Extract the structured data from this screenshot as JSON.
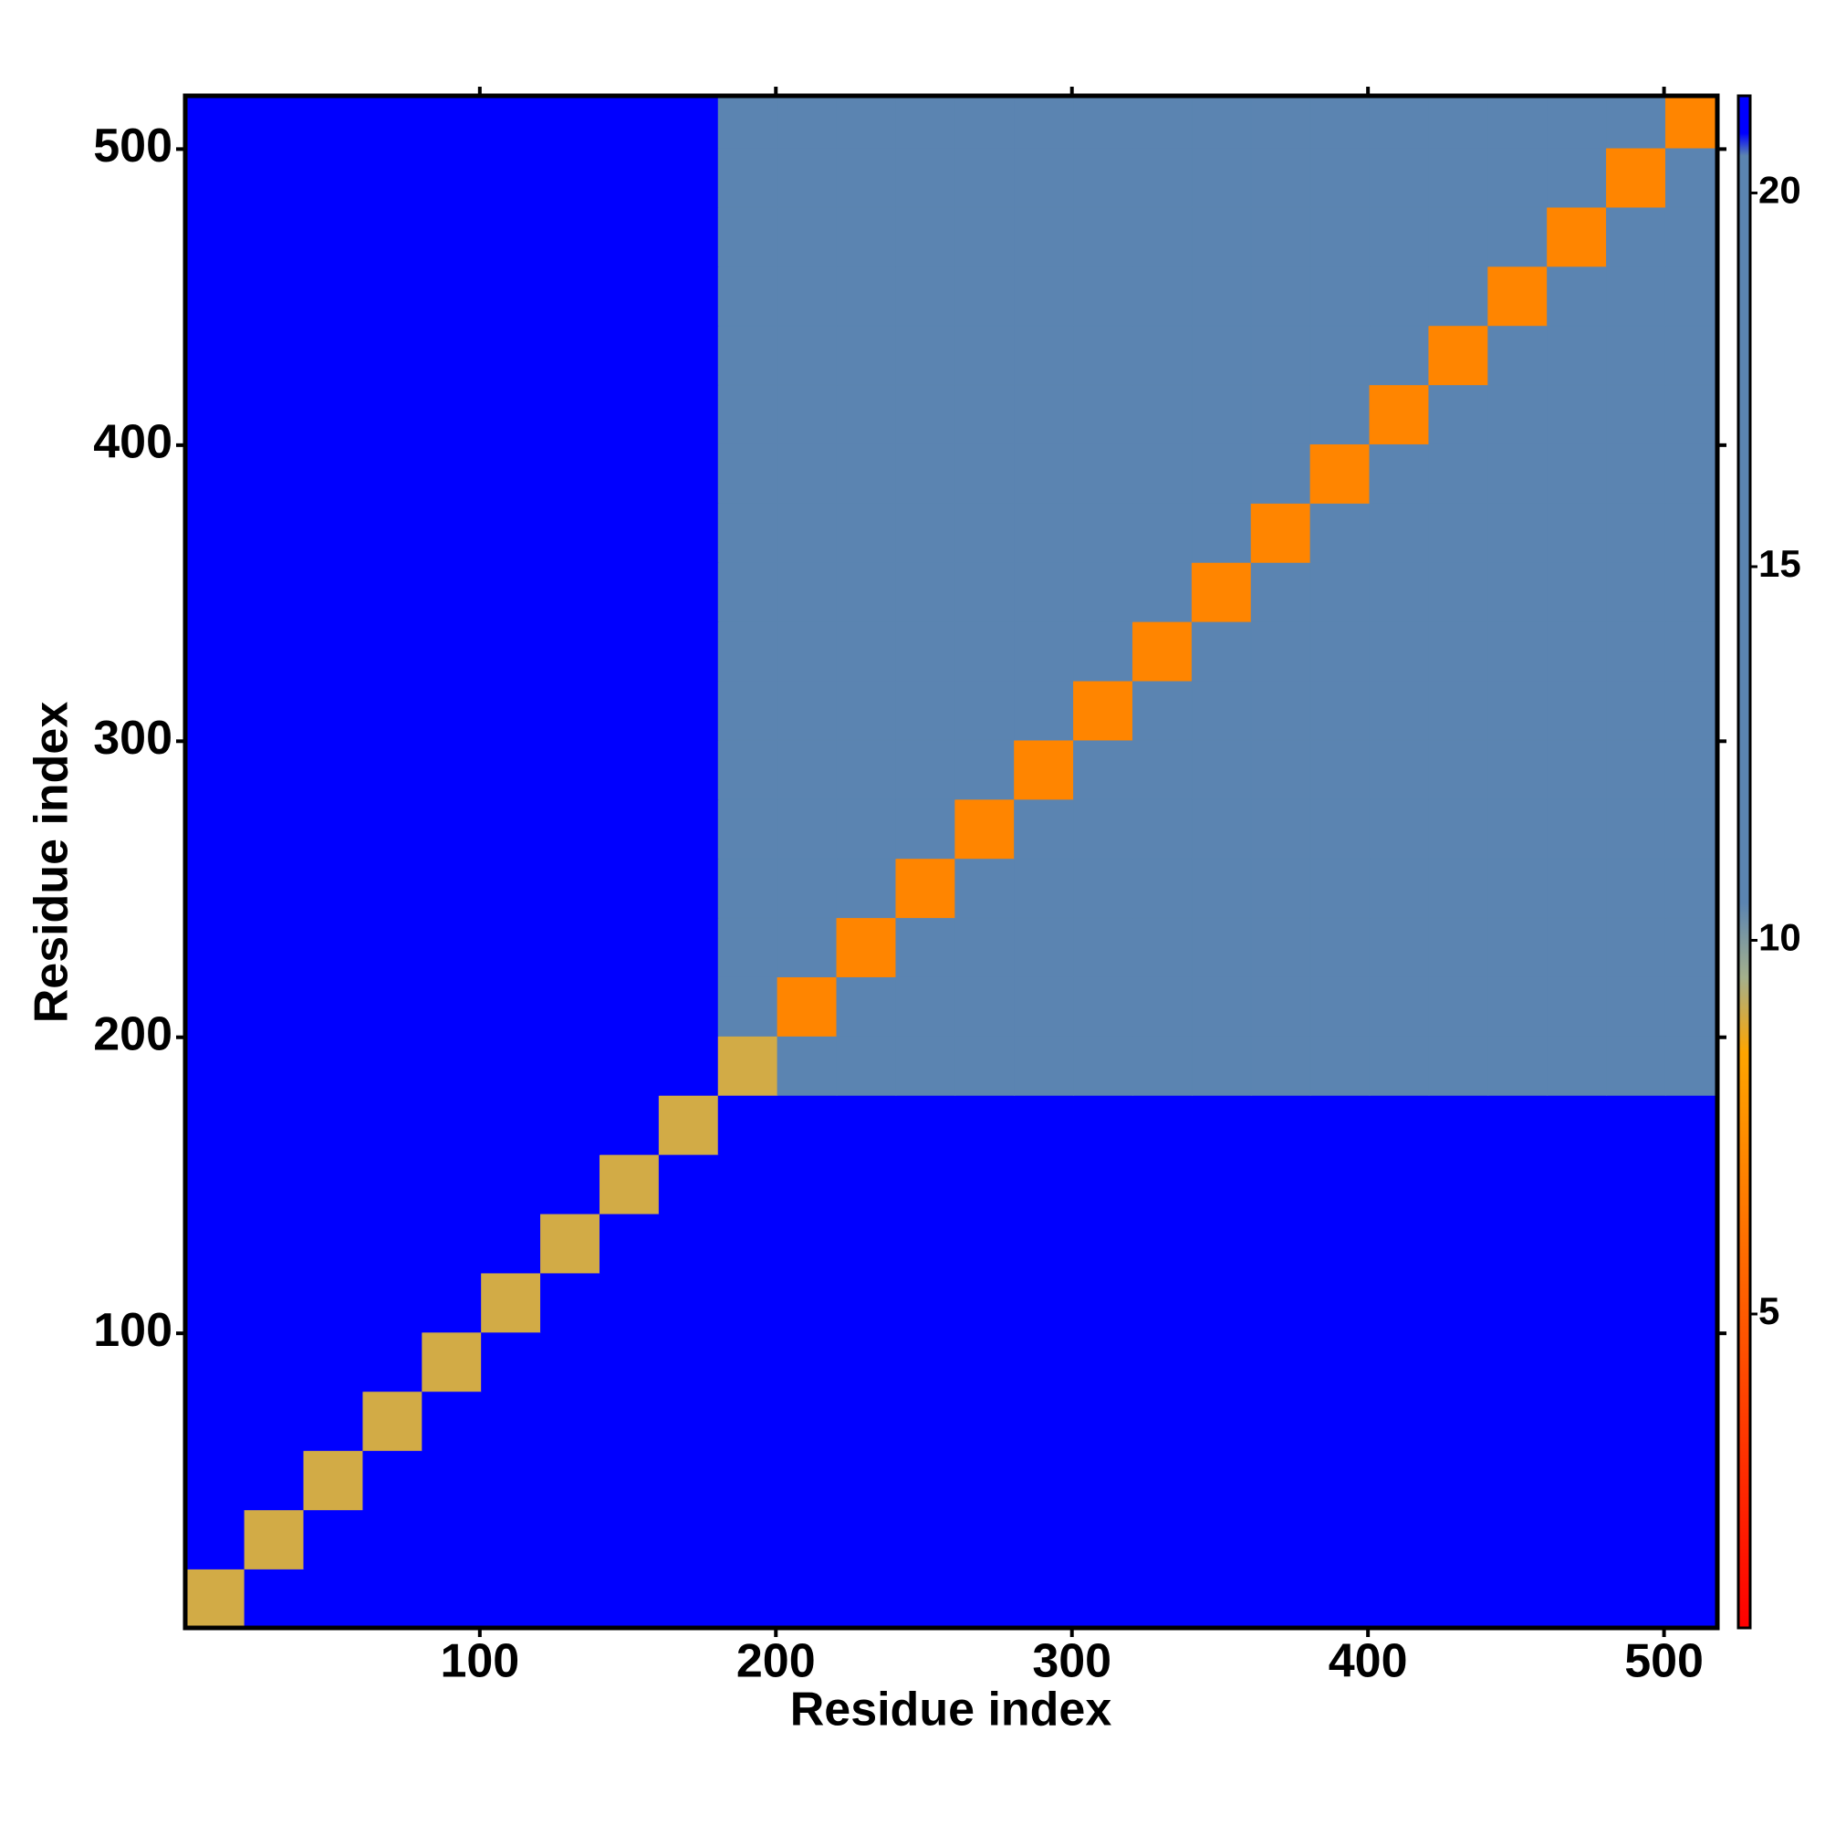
{
  "chart_data": {
    "type": "heatmap",
    "x_label": "Residue index",
    "y_label": "Residue index",
    "xlim": [
      0.5,
      518
    ],
    "ylim": [
      0.5,
      518
    ],
    "xticks": [
      100,
      200,
      300,
      400,
      500
    ],
    "yticks": [
      100,
      200,
      300,
      400,
      500
    ],
    "bins": [
      0.5,
      20.5,
      40.5,
      60.5,
      80.5,
      100.5,
      120.5,
      140.5,
      160.5,
      180.5,
      200.5,
      220.5,
      240.5,
      260.5,
      280.5,
      300.5,
      320.5,
      340.5,
      360.5,
      380.5,
      400.5,
      420.5,
      440.5,
      460.5,
      480.5,
      500.5,
      518
    ],
    "values": [
      [
        9,
        21,
        21,
        21,
        21,
        21,
        21,
        21,
        21,
        21,
        21,
        21,
        21,
        21,
        21,
        21,
        21,
        21,
        21,
        21,
        21,
        21,
        21,
        21,
        21,
        21
      ],
      [
        21,
        9,
        21,
        21,
        21,
        21,
        21,
        21,
        21,
        21,
        21,
        21,
        21,
        21,
        21,
        21,
        21,
        21,
        21,
        21,
        21,
        21,
        21,
        21,
        21,
        21
      ],
      [
        21,
        21,
        9,
        21,
        21,
        21,
        21,
        21,
        21,
        21,
        21,
        21,
        21,
        21,
        21,
        21,
        21,
        21,
        21,
        21,
        21,
        21,
        21,
        21,
        21,
        21
      ],
      [
        21,
        21,
        21,
        9,
        21,
        21,
        21,
        21,
        21,
        21,
        21,
        21,
        21,
        21,
        21,
        21,
        21,
        21,
        21,
        21,
        21,
        21,
        21,
        21,
        21,
        21
      ],
      [
        21,
        21,
        21,
        21,
        9,
        21,
        21,
        21,
        21,
        21,
        21,
        21,
        21,
        21,
        21,
        21,
        21,
        21,
        21,
        21,
        21,
        21,
        21,
        21,
        21,
        21
      ],
      [
        21,
        21,
        21,
        21,
        21,
        9,
        21,
        21,
        21,
        21,
        21,
        21,
        21,
        21,
        21,
        21,
        21,
        21,
        21,
        21,
        21,
        21,
        21,
        21,
        21,
        21
      ],
      [
        21,
        21,
        21,
        21,
        21,
        21,
        9,
        21,
        21,
        21,
        21,
        21,
        21,
        21,
        21,
        21,
        21,
        21,
        21,
        21,
        21,
        21,
        21,
        21,
        21,
        21
      ],
      [
        21,
        21,
        21,
        21,
        21,
        21,
        21,
        9,
        21,
        21,
        21,
        21,
        21,
        21,
        21,
        21,
        21,
        21,
        21,
        21,
        21,
        21,
        21,
        21,
        21,
        21
      ],
      [
        21,
        21,
        21,
        21,
        21,
        21,
        21,
        21,
        9,
        21,
        21,
        21,
        21,
        21,
        21,
        21,
        21,
        21,
        21,
        21,
        21,
        21,
        21,
        21,
        21,
        21
      ],
      [
        21,
        21,
        21,
        21,
        21,
        21,
        21,
        21,
        21,
        9,
        19,
        19,
        19,
        19,
        19,
        19,
        19,
        19,
        19,
        19,
        19,
        19,
        19,
        19,
        19,
        19
      ],
      [
        21,
        21,
        21,
        21,
        21,
        21,
        21,
        21,
        21,
        19,
        7,
        14,
        16,
        17,
        17,
        17,
        17,
        18,
        17,
        18,
        17,
        17,
        18,
        17,
        17,
        18
      ],
      [
        21,
        21,
        21,
        21,
        21,
        21,
        21,
        21,
        21,
        19,
        14,
        7,
        15,
        17,
        16,
        17,
        18,
        17,
        17,
        17,
        18,
        17,
        16,
        17,
        18,
        18
      ],
      [
        21,
        21,
        21,
        21,
        21,
        21,
        21,
        21,
        21,
        19,
        16,
        15,
        7,
        15,
        17,
        16,
        17,
        17,
        17,
        18,
        17,
        17,
        17,
        18,
        17,
        18
      ],
      [
        21,
        21,
        21,
        21,
        21,
        21,
        21,
        21,
        21,
        19,
        17,
        17,
        15,
        7,
        14,
        16,
        15,
        17,
        18,
        17,
        17,
        18,
        17,
        17,
        18,
        17
      ],
      [
        21,
        21,
        21,
        21,
        21,
        21,
        21,
        21,
        21,
        19,
        17,
        16,
        17,
        14,
        7,
        14,
        16,
        15,
        17,
        17,
        18,
        17,
        17,
        17,
        17,
        18
      ],
      [
        21,
        21,
        21,
        21,
        21,
        21,
        21,
        21,
        21,
        19,
        17,
        17,
        16,
        16,
        14,
        7,
        14,
        16,
        17,
        18,
        17,
        17,
        17,
        16,
        17,
        18
      ],
      [
        21,
        21,
        21,
        21,
        21,
        21,
        21,
        21,
        21,
        19,
        17,
        18,
        17,
        15,
        16,
        14,
        7,
        15,
        17,
        17,
        17,
        17,
        16,
        17,
        18,
        18
      ],
      [
        21,
        21,
        21,
        21,
        21,
        21,
        21,
        21,
        21,
        19,
        18,
        17,
        17,
        17,
        15,
        16,
        15,
        7,
        15,
        17,
        17,
        17,
        17,
        17,
        17,
        18
      ],
      [
        21,
        21,
        21,
        21,
        21,
        21,
        21,
        21,
        21,
        19,
        17,
        17,
        17,
        18,
        17,
        17,
        17,
        15,
        7,
        14,
        16,
        17,
        17,
        16,
        17,
        18
      ],
      [
        21,
        21,
        21,
        21,
        21,
        21,
        21,
        21,
        21,
        19,
        18,
        17,
        18,
        17,
        17,
        18,
        17,
        17,
        14,
        7,
        15,
        16,
        17,
        17,
        17,
        17
      ],
      [
        21,
        21,
        21,
        21,
        21,
        21,
        21,
        21,
        21,
        19,
        17,
        18,
        17,
        17,
        18,
        17,
        17,
        17,
        16,
        15,
        7,
        15,
        16,
        16,
        17,
        17
      ],
      [
        21,
        21,
        21,
        21,
        21,
        21,
        21,
        21,
        21,
        19,
        17,
        17,
        17,
        18,
        17,
        17,
        17,
        17,
        17,
        16,
        15,
        7,
        15,
        16,
        17,
        17
      ],
      [
        21,
        21,
        21,
        21,
        21,
        21,
        21,
        21,
        21,
        19,
        18,
        16,
        17,
        17,
        17,
        17,
        16,
        17,
        17,
        17,
        16,
        15,
        7,
        14,
        16,
        16
      ],
      [
        21,
        21,
        21,
        21,
        21,
        21,
        21,
        21,
        21,
        19,
        17,
        17,
        18,
        17,
        17,
        16,
        17,
        17,
        16,
        17,
        16,
        16,
        14,
        7,
        15,
        16
      ],
      [
        21,
        21,
        21,
        21,
        21,
        21,
        21,
        21,
        21,
        19,
        17,
        18,
        17,
        18,
        17,
        17,
        18,
        17,
        17,
        17,
        17,
        17,
        16,
        15,
        7,
        15
      ],
      [
        21,
        21,
        21,
        21,
        21,
        21,
        21,
        21,
        21,
        19,
        18,
        18,
        18,
        17,
        18,
        18,
        18,
        18,
        18,
        17,
        17,
        17,
        16,
        16,
        15,
        7
      ]
    ],
    "colorbar": {
      "lim": [
        0.8,
        21.3
      ],
      "ticks": [
        5,
        10,
        15,
        20
      ],
      "stops": [
        {
          "value": 0.8,
          "color": "#ff0000"
        },
        {
          "value": 8.5,
          "color": "#ffa500"
        },
        {
          "value": 9.5,
          "color": "#a4b08c"
        },
        {
          "value": 10.5,
          "color": "#5b84b1"
        },
        {
          "value": 20.5,
          "color": "#5b84b1"
        },
        {
          "value": 20.8,
          "color": "#0000ff"
        }
      ]
    }
  }
}
